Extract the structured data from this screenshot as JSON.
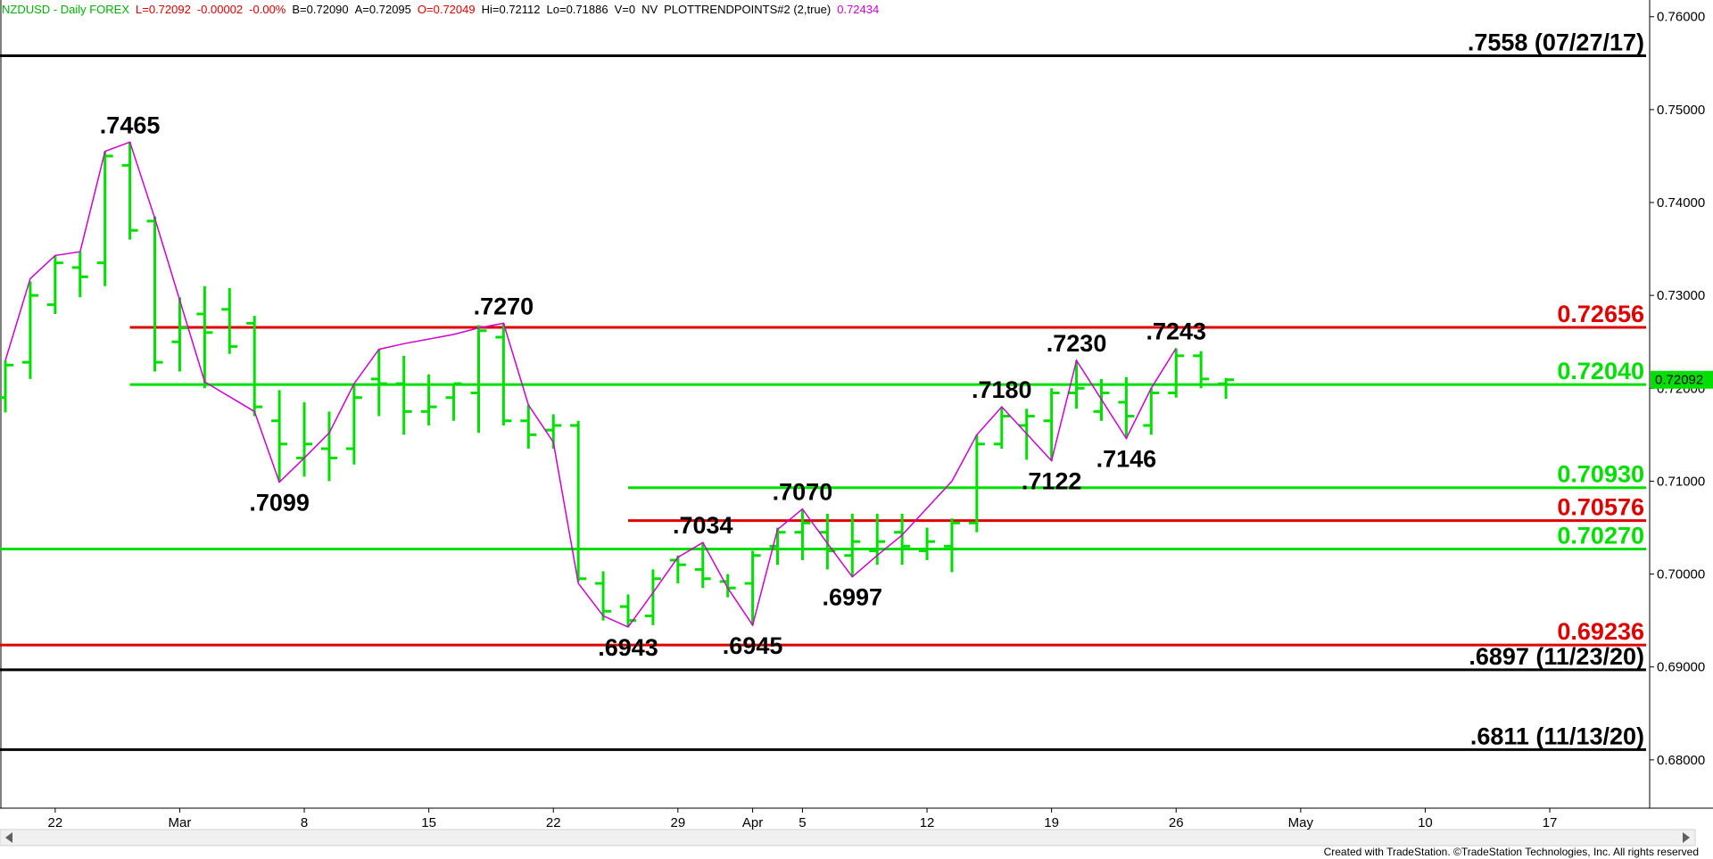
{
  "chart_data": {
    "type": "ohlc",
    "header": [
      {
        "text": "NZDUSD - Daily  FOREX",
        "color": "#00b000"
      },
      {
        "text": "L=0.72092",
        "color": "#e00000"
      },
      {
        "text": "-0.00002",
        "color": "#e00000"
      },
      {
        "text": "-0.00%",
        "color": "#e00000"
      },
      {
        "text": "B=0.72090",
        "color": "#000000"
      },
      {
        "text": "A=0.72095",
        "color": "#000000"
      },
      {
        "text": "O=0.72049",
        "color": "#e00000"
      },
      {
        "text": "Hi=0.72112",
        "color": "#000000"
      },
      {
        "text": "Lo=0.71886",
        "color": "#000000"
      },
      {
        "text": "V=0",
        "color": "#000000"
      },
      {
        "text": "NV",
        "color": "#000000"
      },
      {
        "text": "PLOTTRENDPOINTS#2 (2,true)",
        "color": "#000000"
      },
      {
        "text": "0.72434",
        "color": "#d000d0"
      }
    ],
    "footer": "Created with TradeStation. ©TradeStation Technologies, Inc. All rights reserved",
    "categories": [
      null,
      null,
      "22",
      null,
      null,
      null,
      null,
      "Mar",
      null,
      null,
      null,
      null,
      "8",
      null,
      null,
      null,
      null,
      "15",
      null,
      null,
      null,
      null,
      "22",
      null,
      null,
      null,
      null,
      "29",
      null,
      null,
      "Apr",
      null,
      "5",
      null,
      null,
      null,
      null,
      "12",
      null,
      null,
      null,
      null,
      "19",
      null,
      null,
      null,
      null,
      "26",
      null,
      null,
      null,
      null,
      "May",
      null,
      null,
      null,
      null,
      "10",
      null,
      null,
      null,
      null,
      "17",
      null,
      null,
      null
    ],
    "ohlc": {
      "color": "#00e000",
      "open": [
        0.719,
        0.7228,
        0.729,
        0.733,
        0.7335,
        0.744,
        0.738,
        0.725,
        0.728,
        0.7285,
        0.727,
        0.7165,
        0.7125,
        0.7135,
        0.7135,
        0.721,
        0.7205,
        0.7175,
        0.719,
        0.7195,
        0.7255,
        0.7165,
        0.7155,
        0.716,
        0.699,
        0.6965,
        0.6955,
        0.7015,
        0.7005,
        0.6992,
        0.699,
        0.703,
        0.7045,
        0.7045,
        0.702,
        0.7025,
        0.7045,
        0.7025,
        0.703,
        0.7055,
        0.714,
        0.716,
        0.7165,
        0.7195,
        0.7175,
        0.7185,
        0.716,
        0.7195,
        0.7235,
        0.72049,
        null,
        null,
        null,
        null,
        null,
        null,
        null,
        null,
        null,
        null,
        null,
        null,
        null,
        null,
        null,
        null
      ],
      "high": [
        0.723,
        0.7315,
        0.7343,
        0.7347,
        0.7455,
        0.7465,
        0.7385,
        0.7298,
        0.731,
        0.7308,
        0.7278,
        0.7198,
        0.7185,
        0.7175,
        0.7205,
        0.7242,
        0.7235,
        0.7215,
        0.7205,
        0.7268,
        0.727,
        0.7182,
        0.7172,
        0.7165,
        0.7003,
        0.6978,
        0.7005,
        0.702,
        0.7034,
        0.7,
        0.7025,
        0.705,
        0.707,
        0.7065,
        0.7065,
        0.7065,
        0.7065,
        0.705,
        0.706,
        0.715,
        0.718,
        0.7178,
        0.72,
        0.723,
        0.721,
        0.7212,
        0.72,
        0.7243,
        0.724,
        0.72112,
        null,
        null,
        null,
        null,
        null,
        null,
        null,
        null,
        null,
        null,
        null,
        null,
        null,
        null,
        null,
        null
      ],
      "low": [
        0.7174,
        0.721,
        0.728,
        0.7298,
        0.731,
        0.736,
        0.7218,
        0.7218,
        0.72,
        0.7237,
        0.717,
        0.7099,
        0.7105,
        0.71,
        0.7118,
        0.717,
        0.715,
        0.716,
        0.7165,
        0.7152,
        0.716,
        0.7135,
        0.7135,
        0.6992,
        0.695,
        0.6943,
        0.6945,
        0.699,
        0.6985,
        0.6975,
        0.6945,
        0.701,
        0.7015,
        0.7005,
        0.6997,
        0.701,
        0.701,
        0.7015,
        0.7002,
        0.7045,
        0.7135,
        0.7123,
        0.7122,
        0.7178,
        0.7165,
        0.7146,
        0.715,
        0.719,
        0.72,
        0.71886,
        null,
        null,
        null,
        null,
        null,
        null,
        null,
        null,
        null,
        null,
        null,
        null,
        null,
        null,
        null,
        null
      ],
      "close": [
        0.7225,
        0.73,
        0.7335,
        0.732,
        0.745,
        0.737,
        0.7228,
        0.7265,
        0.726,
        0.7245,
        0.718,
        0.714,
        0.714,
        0.7125,
        0.719,
        0.7205,
        0.7175,
        0.718,
        0.7205,
        0.7262,
        0.7165,
        0.715,
        0.716,
        0.6995,
        0.696,
        0.695,
        0.6995,
        0.701,
        0.6995,
        0.6985,
        0.702,
        0.7045,
        0.7055,
        0.7025,
        0.7035,
        0.7035,
        0.703,
        0.7035,
        0.7055,
        0.714,
        0.717,
        0.717,
        0.7195,
        0.72,
        0.7195,
        0.717,
        0.7195,
        0.7235,
        0.721,
        0.72092,
        null,
        null,
        null,
        null,
        null,
        null,
        null,
        null,
        null,
        null,
        null,
        null,
        null,
        null,
        null,
        null
      ]
    },
    "zigzag": {
      "color": "#d000d0",
      "values": [
        0.723,
        0.7318,
        0.7343,
        0.7347,
        0.7455,
        0.7465,
        0.7383,
        0.7295,
        0.7207,
        0.7191,
        0.7175,
        0.7099,
        0.7125,
        0.7152,
        0.7205,
        0.7242,
        0.7248,
        0.7253,
        0.7258,
        0.7265,
        0.727,
        0.7182,
        0.7142,
        0.699,
        0.6955,
        0.6943,
        0.698,
        0.7018,
        0.7034,
        0.6985,
        0.6945,
        0.7048,
        0.707,
        0.7033,
        0.6997,
        0.702,
        0.7042,
        0.7071,
        0.71,
        0.715,
        0.718,
        0.7151,
        0.7122,
        0.723,
        0.7188,
        0.7146,
        0.72,
        0.7243,
        null,
        null,
        null,
        null,
        null,
        null,
        null,
        null,
        null,
        null,
        null,
        null,
        null,
        null,
        null,
        null,
        null,
        null
      ],
      "value_labels": [
        null,
        null,
        null,
        null,
        null,
        ".7465",
        null,
        null,
        null,
        null,
        null,
        ".7099",
        null,
        null,
        null,
        null,
        null,
        null,
        null,
        null,
        ".7270",
        null,
        null,
        null,
        null,
        ".6943",
        null,
        null,
        ".7034",
        null,
        ".6945",
        null,
        ".7070",
        null,
        ".6997",
        null,
        null,
        null,
        null,
        null,
        ".7180",
        null,
        ".7122",
        ".7230",
        null,
        ".7146",
        null,
        ".7243",
        null,
        null,
        null,
        null,
        null,
        null,
        null,
        null,
        null,
        null,
        null,
        null,
        null,
        null,
        null,
        null,
        null,
        null
      ]
    },
    "levels": [
      {
        "value": 0.7558,
        "label": ".7558 (07/27/17)",
        "color": "#000000"
      },
      {
        "value": 0.72656,
        "label": "0.72656",
        "color": "#e00000"
      },
      {
        "value": 0.7204,
        "label": "0.72040",
        "color": "#00e000"
      },
      {
        "value": 0.7093,
        "label": "0.70930",
        "color": "#00e000"
      },
      {
        "value": 0.70576,
        "label": "0.70576",
        "color": "#e00000"
      },
      {
        "value": 0.7027,
        "label": "0.70270",
        "color": "#00e000"
      },
      {
        "value": 0.69236,
        "label": "0.69236",
        "color": "#e00000"
      },
      {
        "value": 0.6897,
        "label": ".6897 (11/23/20)",
        "color": "#000000"
      },
      {
        "value": 0.6811,
        "label": ".6811 (11/13/20)",
        "color": "#000000"
      }
    ],
    "last_price": {
      "value": 0.72092,
      "label": "0.72092",
      "color": "#00e000"
    },
    "ylim": [
      0.6748,
      0.7618
    ],
    "yticks": [
      {
        "value": 0.68,
        "label": "0.68000"
      },
      {
        "value": 0.69,
        "label": "0.69000"
      },
      {
        "value": 0.7,
        "label": "0.70000"
      },
      {
        "value": 0.71,
        "label": "0.71000"
      },
      {
        "value": 0.72,
        "label": "0.72000"
      },
      {
        "value": 0.73,
        "label": "0.73000"
      },
      {
        "value": 0.74,
        "label": "0.74000"
      },
      {
        "value": 0.75,
        "label": "0.75000"
      },
      {
        "value": 0.76,
        "label": "0.76000"
      }
    ],
    "grid": false
  }
}
